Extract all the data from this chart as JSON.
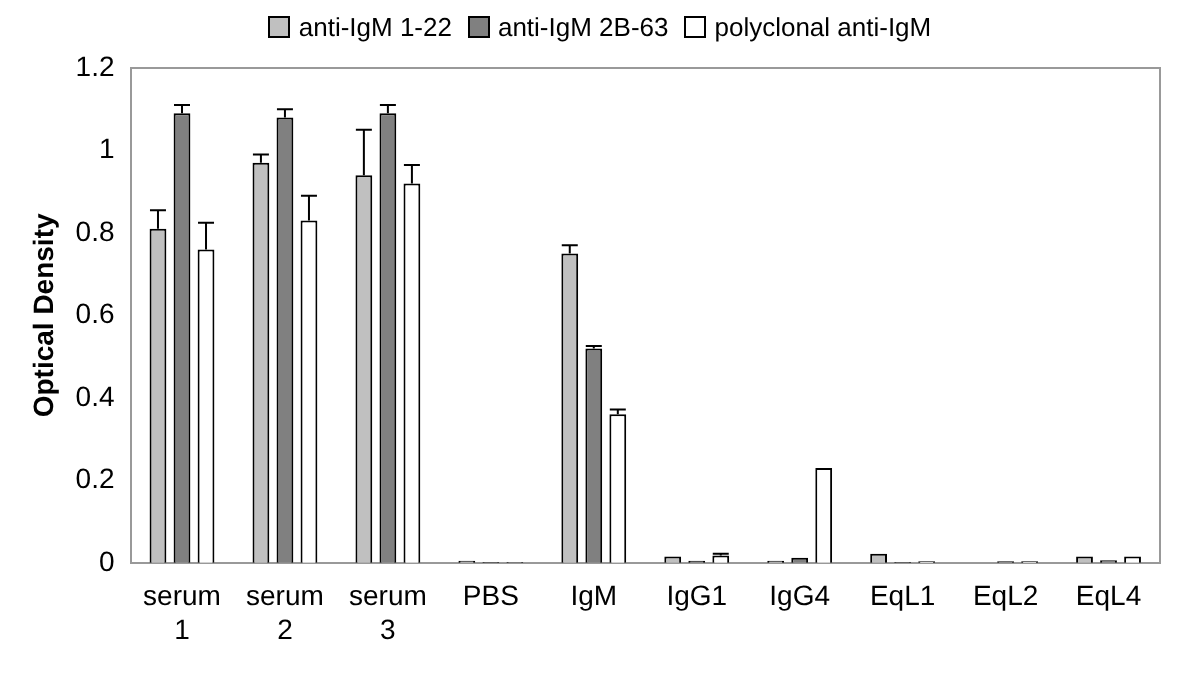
{
  "chart_data": {
    "type": "bar",
    "ylabel": "Optical Density",
    "categories": [
      "serum 1",
      "serum 2",
      "serum 3",
      "PBS",
      "IgM",
      "IgG1",
      "IgG4",
      "EqL1",
      "EqL2",
      "EqL4"
    ],
    "series": [
      {
        "name": "anti-IgM 1-22",
        "color": "#c0c0c0",
        "values": [
          0.81,
          0.97,
          0.94,
          0.005,
          0.75,
          0.015,
          0.005,
          0.022,
          null,
          0.015
        ],
        "errors": [
          [
            0.81,
            0.855
          ],
          [
            0.97,
            0.99
          ],
          [
            0.94,
            1.05
          ],
          null,
          [
            0.75,
            0.77
          ],
          null,
          null,
          null,
          null,
          null
        ]
      },
      {
        "name": "anti-IgM 2B-63",
        "color": "#808080",
        "values": [
          1.09,
          1.08,
          1.09,
          0.002,
          0.52,
          0.005,
          0.012,
          0.002,
          0.004,
          0.006
        ],
        "errors": [
          [
            1.09,
            1.11
          ],
          [
            1.08,
            1.1
          ],
          [
            1.09,
            1.11
          ],
          null,
          [
            0.52,
            0.526
          ],
          null,
          null,
          null,
          null,
          null
        ]
      },
      {
        "name": "polyclonal anti-IgM",
        "color": "#ffffff",
        "values": [
          0.76,
          0.83,
          0.92,
          0.002,
          0.36,
          0.018,
          0.23,
          0.004,
          0.004,
          0.015
        ],
        "errors": [
          [
            0.76,
            0.825
          ],
          [
            0.83,
            0.89
          ],
          [
            0.92,
            0.965
          ],
          null,
          [
            0.36,
            0.372
          ],
          [
            0.018,
            0.022
          ],
          null,
          null,
          null,
          null
        ]
      }
    ],
    "ylim": [
      0,
      1.2
    ],
    "yticks": [
      0,
      0.2,
      0.4,
      0.6,
      0.8,
      1,
      1.2
    ],
    "grid": false,
    "legend": "top"
  }
}
